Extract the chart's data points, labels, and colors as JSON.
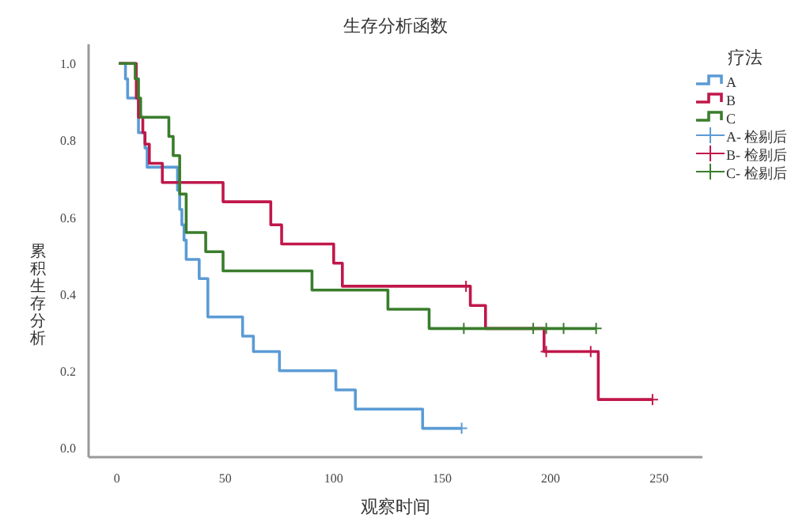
{
  "chart_data": {
    "type": "step",
    "title": "生存分析函数",
    "xlabel": "观察时间",
    "ylabel": "累积生存分析",
    "legend_title": "疗法",
    "legend": "right",
    "grid": false,
    "xlim": [
      -13,
      270
    ],
    "ylim": [
      -0.025,
      1.05
    ],
    "xticks": [
      0,
      50,
      100,
      150,
      200,
      250
    ],
    "yticks": [
      {
        "value": 0,
        "label": "0.0"
      },
      0.2,
      0.4,
      0.6,
      0.8,
      {
        "value": 1,
        "label": "1.0"
      }
    ],
    "series": [
      {
        "name": "A",
        "color": "#5b9bd5",
        "x": [
          1,
          4,
          5,
          10,
          13,
          14,
          28,
          29,
          30,
          31,
          32,
          38,
          42,
          58,
          63,
          75,
          101,
          110,
          141,
          159
        ],
        "values": [
          1,
          0.96,
          0.91,
          0.82,
          0.78,
          0.73,
          0.67,
          0.62,
          0.58,
          0.54,
          0.49,
          0.44,
          0.34,
          0.29,
          0.25,
          0.2,
          0.15,
          0.1,
          0.05,
          0.05
        ]
      },
      {
        "name": "B",
        "color": "#c0174a",
        "x": [
          1,
          9,
          10,
          12,
          13,
          15,
          21,
          49,
          71,
          76,
          100,
          104,
          163,
          170,
          197,
          222,
          247
        ],
        "values": [
          1,
          0.91,
          0.86,
          0.82,
          0.79,
          0.74,
          0.69,
          0.64,
          0.58,
          0.53,
          0.48,
          0.42,
          0.37,
          0.31,
          0.25,
          0.125,
          0.125
        ]
      },
      {
        "name": "C",
        "color": "#3a7d2c",
        "x": [
          1,
          8.5,
          10,
          11,
          24,
          26,
          29,
          32,
          41,
          49,
          90,
          125,
          144,
          221
        ],
        "values": [
          1,
          0.96,
          0.91,
          0.86,
          0.81,
          0.76,
          0.66,
          0.56,
          0.51,
          0.46,
          0.41,
          0.36,
          0.31,
          0.31
        ]
      },
      {
        "name": "A- 检剔后",
        "type": "scatter",
        "marker": "cross",
        "color": "#5b9bd5",
        "x": [
          159
        ],
        "values": [
          0.05
        ]
      },
      {
        "name": "B- 检剔后",
        "type": "scatter",
        "marker": "cross",
        "color": "#c0174a",
        "x": [
          161,
          198,
          218.5,
          247
        ],
        "values": [
          0.42,
          0.25,
          0.25,
          0.125
        ]
      },
      {
        "name": "C- 检剔后",
        "type": "scatter",
        "marker": "cross",
        "color": "#3a7d2c",
        "x": [
          160,
          192,
          198,
          206,
          221
        ],
        "values": [
          0.31,
          0.31,
          0.31,
          0.31,
          0.31
        ]
      }
    ]
  }
}
